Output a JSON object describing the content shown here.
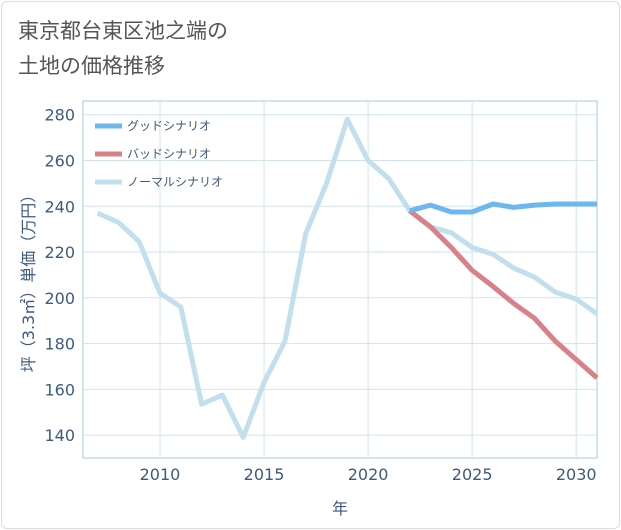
{
  "title": "東京都台東区池之端の\n土地の価格推移",
  "chart_data": {
    "type": "line",
    "xlabel": "年",
    "ylabel": "坪（3.3㎡）単価（万円）",
    "xlim": [
      2006.3,
      2031
    ],
    "ylim": [
      130,
      286
    ],
    "x_ticks": [
      2010,
      2015,
      2020,
      2025,
      2030
    ],
    "y_ticks": [
      140,
      160,
      180,
      200,
      220,
      240,
      260,
      280
    ],
    "grid": true,
    "legend_position": "top-left",
    "series": [
      {
        "name": "グッドシナリオ",
        "color": "#6cb8ec",
        "x": [
          2022,
          2023,
          2024,
          2025,
          2026,
          2027,
          2028,
          2029,
          2030,
          2031
        ],
        "values": [
          238,
          240.5,
          237.5,
          237.5,
          241,
          239.5,
          240.5,
          241,
          241,
          241
        ]
      },
      {
        "name": "バッドシナリオ",
        "color": "#d98088",
        "x": [
          2022,
          2023,
          2024,
          2025,
          2026,
          2027,
          2028,
          2029,
          2030,
          2031
        ],
        "values": [
          238,
          231,
          222,
          212,
          205,
          197.5,
          191,
          181,
          173,
          165
        ]
      },
      {
        "name": "ノーマルシナリオ",
        "color": "#c2dfee",
        "x": [
          2007,
          2008,
          2009,
          2010,
          2011,
          2012,
          2013,
          2014,
          2015,
          2016,
          2017,
          2018,
          2019,
          2020,
          2021,
          2022,
          2023,
          2024,
          2025,
          2026,
          2027,
          2028,
          2029,
          2030,
          2031
        ],
        "values": [
          237,
          233,
          224.5,
          202,
          196,
          153.5,
          157.5,
          139,
          163,
          181,
          228,
          250,
          278,
          260,
          252,
          238,
          231,
          228.5,
          222,
          219,
          213,
          209,
          202.5,
          199.5,
          193
        ]
      }
    ]
  }
}
